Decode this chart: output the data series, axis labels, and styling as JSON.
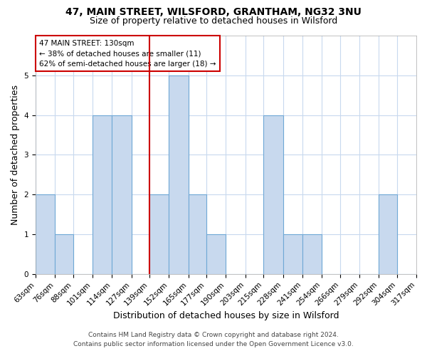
{
  "title": "47, MAIN STREET, WILSFORD, GRANTHAM, NG32 3NU",
  "subtitle": "Size of property relative to detached houses in Wilsford",
  "xlabel": "Distribution of detached houses by size in Wilsford",
  "ylabel": "Number of detached properties",
  "footer_lines": [
    "Contains HM Land Registry data © Crown copyright and database right 2024.",
    "Contains public sector information licensed under the Open Government Licence v3.0."
  ],
  "bins": [
    63,
    76,
    88,
    101,
    114,
    127,
    139,
    152,
    165,
    177,
    190,
    203,
    215,
    228,
    241,
    254,
    266,
    279,
    292,
    304,
    317
  ],
  "bin_labels": [
    "63sqm",
    "76sqm",
    "88sqm",
    "101sqm",
    "114sqm",
    "127sqm",
    "139sqm",
    "152sqm",
    "165sqm",
    "177sqm",
    "190sqm",
    "203sqm",
    "215sqm",
    "228sqm",
    "241sqm",
    "254sqm",
    "266sqm",
    "279sqm",
    "292sqm",
    "304sqm",
    "317sqm"
  ],
  "counts": [
    2,
    1,
    0,
    4,
    4,
    0,
    2,
    5,
    2,
    1,
    0,
    0,
    4,
    1,
    1,
    0,
    0,
    0,
    2,
    0
  ],
  "bar_color": "#c8d9ee",
  "bar_edge_color": "#6fa8d6",
  "property_bin_index": 5,
  "vline_color": "#cc0000",
  "annotation_text": "47 MAIN STREET: 130sqm\n← 38% of detached houses are smaller (11)\n62% of semi-detached houses are larger (18) →",
  "annotation_box_edge_color": "#cc0000",
  "annotation_box_face_color": "#ffffff",
  "ylim": [
    0,
    6
  ],
  "yticks": [
    0,
    1,
    2,
    3,
    4,
    5,
    6
  ],
  "background_color": "#ffffff",
  "grid_color": "#c8d9ee",
  "title_fontsize": 10,
  "subtitle_fontsize": 9,
  "label_fontsize": 9,
  "tick_fontsize": 7.5,
  "footer_fontsize": 6.5
}
